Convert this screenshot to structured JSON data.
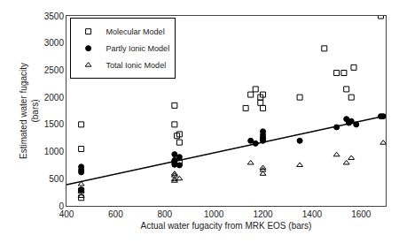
{
  "chart_data": {
    "type": "scatter",
    "title": "",
    "xlabel": "Actual water fugacity from MRK EOS (bars)",
    "ylabel": "Estimated water fugacity\n(bars)",
    "xlim": [
      400,
      1700
    ],
    "ylim": [
      0,
      3500
    ],
    "xticks": [
      400,
      600,
      800,
      1000,
      1200,
      1400,
      1600
    ],
    "yticks": [
      0,
      500,
      1000,
      1500,
      2000,
      2500,
      3000,
      3500
    ],
    "grid": false,
    "legend": "upper left",
    "series": [
      {
        "name": "Molecular Model",
        "type": "scatter",
        "marker": "square-open",
        "color": "#000000",
        "x": [
          460,
          460,
          460,
          460,
          840,
          840,
          850,
          860,
          860,
          860,
          1130,
          1150,
          1170,
          1190,
          1190,
          1200,
          1200,
          1350,
          1450,
          1500,
          1530,
          1540,
          1560,
          1570,
          1680
        ],
        "values": [
          1500,
          1050,
          280,
          150,
          1850,
          1500,
          1290,
          1320,
          1170,
          800,
          1800,
          2050,
          2150,
          2000,
          1900,
          2050,
          1800,
          2000,
          2900,
          2450,
          2450,
          2150,
          2000,
          2550,
          3500
        ]
      },
      {
        "name": "Partly Ionic Model",
        "type": "scatter",
        "marker": "circle",
        "color": "#000000",
        "x": [
          460,
          460,
          460,
          460,
          840,
          840,
          840,
          840,
          840,
          860,
          860,
          1150,
          1170,
          1200,
          1200,
          1200,
          1200,
          1200,
          1350,
          1500,
          1540,
          1550,
          1560,
          1580,
          1680,
          1690
        ],
        "values": [
          720,
          660,
          620,
          300,
          950,
          840,
          820,
          790,
          760,
          900,
          750,
          1200,
          1150,
          1370,
          1310,
          1260,
          1230,
          1200,
          1200,
          1450,
          1600,
          1530,
          1560,
          1500,
          1650,
          1650
        ]
      },
      {
        "name": "Total Ionic Model",
        "type": "scatter",
        "marker": "triangle-up-open",
        "color": "#000000",
        "x": [
          460,
          460,
          460,
          840,
          840,
          840,
          840,
          860,
          1150,
          1200,
          1200,
          1200,
          1350,
          1500,
          1540,
          1560,
          1690
        ],
        "values": [
          400,
          280,
          180,
          590,
          560,
          490,
          460,
          500,
          790,
          700,
          660,
          590,
          750,
          940,
          790,
          880,
          1160
        ]
      },
      {
        "type": "line",
        "color": "#000000",
        "line_style": "solid",
        "x": [
          400,
          1700
        ],
        "values": [
          390,
          1660
        ]
      }
    ]
  }
}
